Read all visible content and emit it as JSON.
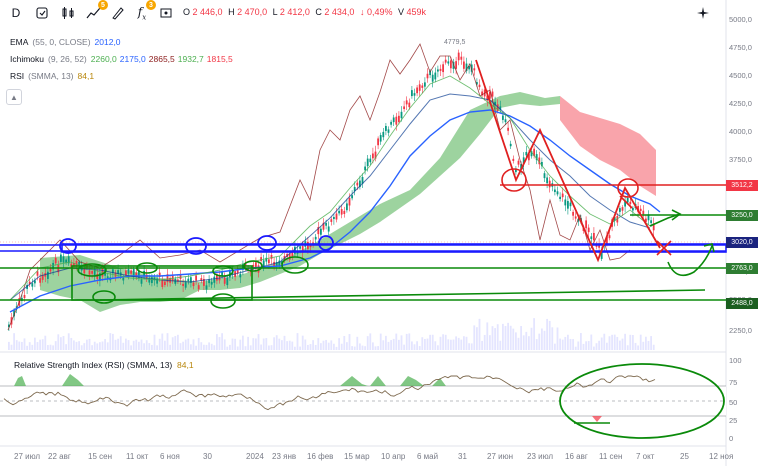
{
  "toolbar": {
    "interval_label": "D",
    "indicators_badge": "3",
    "alerts_badge": "5",
    "ohlc": {
      "o_key": "O",
      "o_val": "2 446,0",
      "h_key": "H",
      "h_val": "2 470,0",
      "l_key": "L",
      "l_val": "2 412,0",
      "c_key": "C",
      "c_val": "2 434,0",
      "change": "↓ 0,49%",
      "volume_key": "V",
      "volume_val": "459k"
    }
  },
  "legend": {
    "ema": {
      "name": "EMA",
      "params": "(55, 0, CLOSE)",
      "value": "2012,0"
    },
    "ichimoku": {
      "name": "Ichimoku",
      "params": "(9, 26, 52)",
      "values": [
        "2260,0",
        "2175,0",
        "2865,5",
        "1932,7",
        "1815,5"
      ]
    },
    "rsi": {
      "name": "RSI",
      "params": "(SMMA, 13)",
      "value": "84,1"
    },
    "collapse_icon": "chevron-up-icon"
  },
  "rsi_pane": {
    "title": "Relative Strength Index (RSI) (SMMA, 13)",
    "value": "84,1"
  },
  "price_axis": {
    "ticks": [
      "5000,0",
      "4750,0",
      "4500,0",
      "4250,0",
      "4000,0",
      "3750,0",
      "3500,0",
      "3250,0",
      "3000,0",
      "2750,0",
      "2500,0",
      "2250,0"
    ],
    "tags": [
      {
        "text": "3512,2",
        "color": "#f23645"
      },
      {
        "text": "3250,0",
        "color": "#2e7d32"
      },
      {
        "text": "3020,0",
        "color": "#1a237e"
      },
      {
        "text": "2763,0",
        "color": "#2e7d32"
      },
      {
        "text": "2488,0",
        "color": "#1b5e20"
      }
    ],
    "high_label": "4779,5"
  },
  "rsi_axis": {
    "ticks": [
      "100",
      "75",
      "50",
      "25",
      "0"
    ]
  },
  "time_axis": {
    "labels": [
      "27 июл",
      "22 авг",
      "15 сен",
      "11 окт",
      "6 ноя",
      "30",
      "2024",
      "23 янв",
      "16 фев",
      "15 мар",
      "10 апр",
      "6 май",
      "31",
      "27 июн",
      "23 июл",
      "16 авг",
      "11 сен",
      "7 окт",
      "25",
      "12 ноя"
    ]
  },
  "colors": {
    "bull": "#089981",
    "bear": "#f23645",
    "ema": "#2962ff",
    "kumo_up": "#4caf50",
    "kumo_down": "#f23645",
    "annotation_blue": "#1a1aff",
    "annotation_red": "#e02020",
    "annotation_green": "#0a8a0a",
    "rsi_line": "#7e6a4f"
  }
}
